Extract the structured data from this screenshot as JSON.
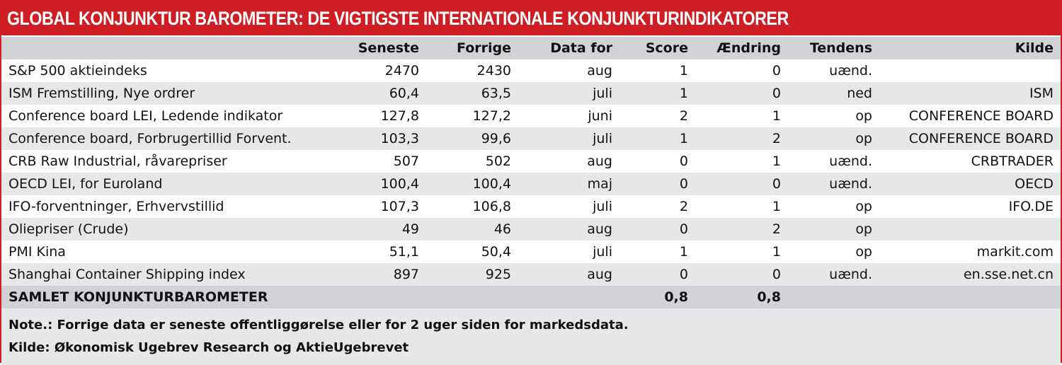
{
  "title": "GLOBAL KONJUNKTUR BAROMETER: DE VIGTIGSTE INTERNATIONALE KONJUNKTURINDIKATORER",
  "columns": [
    "",
    "Seneste",
    "Forrige",
    "Data for",
    "Score",
    "Ændring",
    "Tendens",
    "Kilde"
  ],
  "rows": [
    [
      "S&P 500 aktieindeks",
      "2470",
      "2430",
      "aug",
      "1",
      "0",
      "uænd.",
      ""
    ],
    [
      "ISM Fremstilling, Nye ordrer",
      "60,4",
      "63,5",
      "juli",
      "1",
      "0",
      "ned",
      "ISM"
    ],
    [
      "Conference board LEI, Ledende indikator",
      "127,8",
      "127,2",
      "juni",
      "2",
      "1",
      "op",
      "CONFERENCE BOARD"
    ],
    [
      "Conference board, Forbrugertillid Forvent.",
      "103,3",
      "99,6",
      "juli",
      "1",
      "2",
      "op",
      "CONFERENCE BOARD"
    ],
    [
      "CRB Raw Industrial, råvarepriser",
      "507",
      "502",
      "aug",
      "0",
      "1",
      "uænd.",
      "CRBTRADER"
    ],
    [
      "OECD LEI, for Euroland",
      "100,4",
      "100,4",
      "maj",
      "0",
      "0",
      "uænd.",
      "OECD"
    ],
    [
      "IFO-forventninger, Erhvervstillid",
      "107,3",
      "106,8",
      "juli",
      "2",
      "1",
      "op",
      "IFO.DE"
    ],
    [
      "Oliepriser (Crude)",
      "49",
      "46",
      "aug",
      "0",
      "2",
      "op",
      ""
    ],
    [
      "PMI Kina",
      "51,1",
      "50,4",
      "juli",
      "1",
      "1",
      "op",
      "markit.com"
    ],
    [
      "Shanghai  Container Shipping index",
      "897",
      "925",
      "aug",
      "0",
      "0",
      "uænd.",
      "en.sse.net.cn"
    ]
  ],
  "total": [
    "SAMLET KONJUNKTURBAROMETER",
    "",
    "",
    "",
    "0,8",
    "0,8",
    "",
    ""
  ],
  "note": "Note.: Forrige data er seneste offentliggørelse eller for 2 uger siden for markedsdata.",
  "source": "Kilde: Økonomisk Ugebrev Research og AktieUgebrevet",
  "colors": {
    "accent": "#cf1d24",
    "header_bg": "#d1d3d6",
    "stripe_bg": "#e6e7e9"
  }
}
